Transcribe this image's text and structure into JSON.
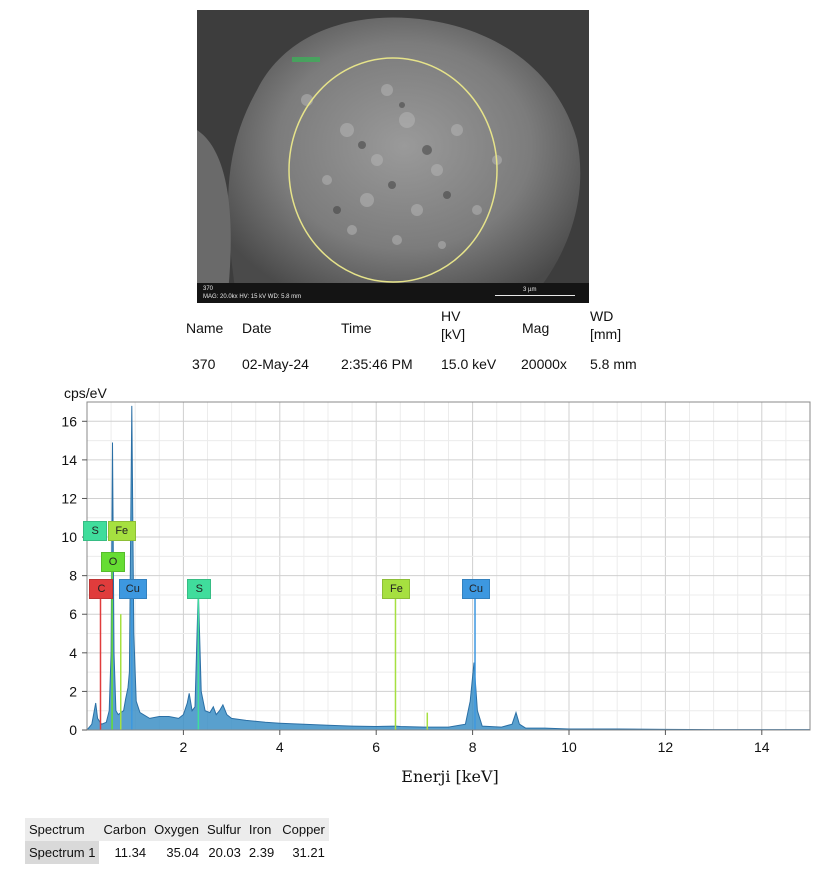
{
  "sem_image": {
    "info_line1": "370",
    "info_line2": "MAG: 20.0kx   HV: 15 kV   WD: 5.8 mm",
    "scale_label": "3 µm"
  },
  "metadata": {
    "headers": [
      "Name",
      "Date",
      "Time",
      "HV\n[kV]",
      "Mag",
      "WD\n[mm]"
    ],
    "values": [
      "370",
      "02-May-24",
      "2:35:46 PM",
      "15.0 keV",
      "20000x",
      "5.8 mm"
    ]
  },
  "chart_data": {
    "type": "line",
    "ylabel": "cps/eV",
    "xlabel": "Enerji [keV]",
    "xlim": [
      0,
      15
    ],
    "ylim": [
      0,
      17
    ],
    "xticks": [
      2,
      4,
      6,
      8,
      10,
      12,
      14
    ],
    "yticks": [
      0,
      2,
      4,
      6,
      8,
      10,
      12,
      14,
      16
    ],
    "grid": true,
    "fill_color": "#3c8fc6",
    "spectrum": [
      [
        0.0,
        0.0
      ],
      [
        0.1,
        0.3
      ],
      [
        0.18,
        1.4
      ],
      [
        0.22,
        0.6
      ],
      [
        0.3,
        0.3
      ],
      [
        0.4,
        0.4
      ],
      [
        0.46,
        1.0
      ],
      [
        0.5,
        4.0
      ],
      [
        0.53,
        14.9
      ],
      [
        0.56,
        4.0
      ],
      [
        0.6,
        1.0
      ],
      [
        0.65,
        0.8
      ],
      [
        0.7,
        0.9
      ],
      [
        0.76,
        1.0
      ],
      [
        0.8,
        1.6
      ],
      [
        0.85,
        2.2
      ],
      [
        0.88,
        3.0
      ],
      [
        0.93,
        16.8
      ],
      [
        0.97,
        5.0
      ],
      [
        1.02,
        1.5
      ],
      [
        1.1,
        0.9
      ],
      [
        1.3,
        0.6
      ],
      [
        1.5,
        0.7
      ],
      [
        1.7,
        0.7
      ],
      [
        1.9,
        0.6
      ],
      [
        2.0,
        0.8
      ],
      [
        2.08,
        1.4
      ],
      [
        2.12,
        1.9
      ],
      [
        2.18,
        1.0
      ],
      [
        2.24,
        1.2
      ],
      [
        2.31,
        7.3
      ],
      [
        2.37,
        2.0
      ],
      [
        2.45,
        1.0
      ],
      [
        2.55,
        0.9
      ],
      [
        2.62,
        1.2
      ],
      [
        2.68,
        0.8
      ],
      [
        2.75,
        1.0
      ],
      [
        2.82,
        1.3
      ],
      [
        2.9,
        0.8
      ],
      [
        3.0,
        0.6
      ],
      [
        3.3,
        0.5
      ],
      [
        3.7,
        0.4
      ],
      [
        4.0,
        0.35
      ],
      [
        4.5,
        0.3
      ],
      [
        5.0,
        0.25
      ],
      [
        5.5,
        0.2
      ],
      [
        6.0,
        0.18
      ],
      [
        6.4,
        0.2
      ],
      [
        6.5,
        0.18
      ],
      [
        7.0,
        0.15
      ],
      [
        7.5,
        0.15
      ],
      [
        7.85,
        0.3
      ],
      [
        7.95,
        1.5
      ],
      [
        8.03,
        3.5
      ],
      [
        8.1,
        1.0
      ],
      [
        8.2,
        0.2
      ],
      [
        8.6,
        0.15
      ],
      [
        8.82,
        0.3
      ],
      [
        8.9,
        0.9
      ],
      [
        8.97,
        0.3
      ],
      [
        9.1,
        0.1
      ],
      [
        9.5,
        0.1
      ],
      [
        10.0,
        0.05
      ],
      [
        11.0,
        0.05
      ],
      [
        12.0,
        0.03
      ],
      [
        13.0,
        0.02
      ],
      [
        14.0,
        0.02
      ],
      [
        15.0,
        0.02
      ]
    ],
    "markers": [
      {
        "label": "C",
        "x": 0.28,
        "y": 7.3,
        "color": "#e03c3c"
      },
      {
        "label": "O",
        "x": 0.52,
        "y": 8.7,
        "color": "#66dd33"
      },
      {
        "label": "S",
        "x": 0.15,
        "y": 10.3,
        "color": "#40dd9c"
      },
      {
        "label": "Fe",
        "x": 0.7,
        "y": 10.3,
        "color": "#a6e040"
      },
      {
        "label": "Cu",
        "x": 0.93,
        "y": 7.3,
        "color": "#3d98e0"
      },
      {
        "label": "S",
        "x": 2.31,
        "y": 7.3,
        "color": "#40dd9c"
      },
      {
        "label": "Fe",
        "x": 6.4,
        "y": 7.3,
        "color": "#a6e040"
      },
      {
        "label": "Cu",
        "x": 8.05,
        "y": 7.3,
        "color": "#3d98e0"
      }
    ],
    "marker_lines": [
      {
        "x": 0.28,
        "top": 7.3,
        "color": "#e03c3c"
      },
      {
        "x": 0.52,
        "top": 8.7,
        "color": "#66dd33"
      },
      {
        "x": 0.7,
        "top": 6.0,
        "color": "#a6e040"
      },
      {
        "x": 0.93,
        "top": 7.3,
        "color": "#3d98e0"
      },
      {
        "x": 2.31,
        "top": 7.3,
        "color": "#40dd9c"
      },
      {
        "x": 6.4,
        "top": 7.3,
        "color": "#a6e040"
      },
      {
        "x": 7.06,
        "top": 0.9,
        "color": "#a6e040"
      },
      {
        "x": 8.05,
        "top": 7.3,
        "color": "#3d98e0"
      }
    ]
  },
  "composition_table": {
    "headers": [
      "Spectrum",
      "Carbon",
      "Oxygen",
      "Sulfur",
      "Iron",
      "Copper"
    ],
    "row": [
      "Spectrum 1",
      "11.34",
      "35.04",
      "20.03",
      "2.39",
      "31.21"
    ]
  }
}
